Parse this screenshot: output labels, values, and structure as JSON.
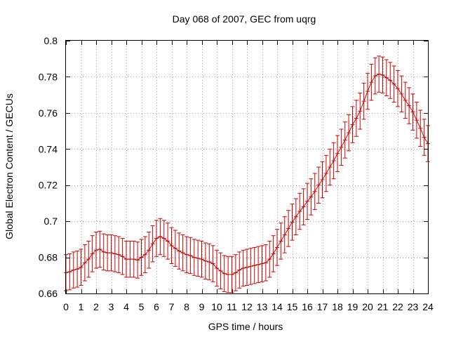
{
  "chart_data": {
    "type": "line",
    "title": "Day 068 of 2007, GEC from uqrg",
    "xlabel": "GPS time / hours",
    "ylabel": "Global Electron Content / GECUs",
    "xlim": [
      0,
      24
    ],
    "ylim": [
      0.66,
      0.8
    ],
    "xticks": [
      0,
      1,
      2,
      3,
      4,
      5,
      6,
      7,
      8,
      9,
      10,
      11,
      12,
      13,
      14,
      15,
      16,
      17,
      18,
      19,
      20,
      21,
      22,
      23,
      24
    ],
    "yticks": [
      0.66,
      0.68,
      0.7,
      0.72,
      0.74,
      0.76,
      0.78,
      0.8
    ],
    "grid": true,
    "color": "#cc0000",
    "error": 0.01,
    "series": [
      {
        "x": [
          0,
          0.25,
          0.5,
          0.75,
          1,
          1.25,
          1.5,
          1.75,
          2,
          2.25,
          2.5,
          2.75,
          3,
          3.25,
          3.5,
          3.75,
          4,
          4.25,
          4.5,
          4.75,
          5,
          5.25,
          5.5,
          5.75,
          6,
          6.25,
          6.5,
          6.75,
          7,
          7.25,
          7.5,
          7.75,
          8,
          8.25,
          8.5,
          8.75,
          9,
          9.25,
          9.5,
          9.75,
          10,
          10.25,
          10.5,
          10.75,
          11,
          11.25,
          11.5,
          11.75,
          12,
          12.25,
          12.5,
          12.75,
          13,
          13.25,
          13.5,
          13.75,
          14,
          14.25,
          14.5,
          14.75,
          15,
          15.25,
          15.5,
          15.75,
          16,
          16.25,
          16.5,
          16.75,
          17,
          17.25,
          17.5,
          17.75,
          18,
          18.25,
          18.5,
          18.75,
          19,
          19.25,
          19.5,
          19.75,
          20,
          20.25,
          20.5,
          20.75,
          21,
          21.25,
          21.5,
          21.75,
          22,
          22.25,
          22.5,
          22.75,
          23,
          23.25,
          23.5,
          23.75,
          24
        ],
        "y": [
          0.6715,
          0.672,
          0.673,
          0.6735,
          0.6745,
          0.677,
          0.679,
          0.682,
          0.684,
          0.6845,
          0.683,
          0.6825,
          0.6825,
          0.682,
          0.6815,
          0.6805,
          0.679,
          0.679,
          0.679,
          0.6785,
          0.68,
          0.6815,
          0.684,
          0.6875,
          0.6905,
          0.6915,
          0.6905,
          0.689,
          0.6865,
          0.685,
          0.6835,
          0.6825,
          0.6815,
          0.681,
          0.68,
          0.6795,
          0.679,
          0.678,
          0.6775,
          0.6765,
          0.674,
          0.6725,
          0.671,
          0.6705,
          0.6705,
          0.6715,
          0.673,
          0.674,
          0.6745,
          0.675,
          0.6755,
          0.676,
          0.6765,
          0.677,
          0.679,
          0.682,
          0.6855,
          0.689,
          0.6925,
          0.696,
          0.6995,
          0.7025,
          0.7055,
          0.708,
          0.711,
          0.7135,
          0.7165,
          0.72,
          0.723,
          0.7265,
          0.73,
          0.7335,
          0.7375,
          0.741,
          0.745,
          0.749,
          0.7535,
          0.757,
          0.761,
          0.7665,
          0.772,
          0.777,
          0.7805,
          0.7815,
          0.781,
          0.7795,
          0.778,
          0.776,
          0.7735,
          0.7705,
          0.767,
          0.764,
          0.7605,
          0.756,
          0.7515,
          0.7465,
          0.743
        ]
      }
    ]
  }
}
